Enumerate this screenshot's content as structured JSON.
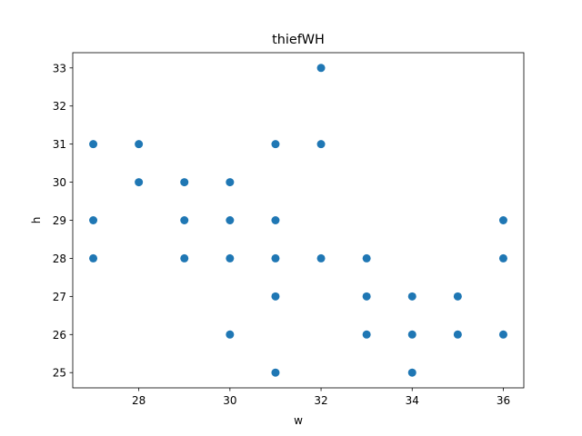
{
  "chart_data": {
    "type": "scatter",
    "title": "thiefWH",
    "xlabel": "w",
    "ylabel": "h",
    "xlim": [
      26.55,
      36.45
    ],
    "ylim": [
      24.6,
      33.4
    ],
    "xticks": [
      28,
      30,
      32,
      34,
      36
    ],
    "yticks": [
      25,
      26,
      27,
      28,
      29,
      30,
      31,
      32,
      33
    ],
    "grid": false,
    "marker_color": "#1f77b4",
    "points": [
      [
        27,
        31
      ],
      [
        27,
        29
      ],
      [
        27,
        28
      ],
      [
        28,
        31
      ],
      [
        28,
        30
      ],
      [
        29,
        30
      ],
      [
        29,
        29
      ],
      [
        29,
        28
      ],
      [
        30,
        30
      ],
      [
        30,
        29
      ],
      [
        30,
        28
      ],
      [
        30,
        26
      ],
      [
        31,
        31
      ],
      [
        31,
        29
      ],
      [
        31,
        28
      ],
      [
        31,
        27
      ],
      [
        31,
        25
      ],
      [
        32,
        33
      ],
      [
        32,
        31
      ],
      [
        32,
        28
      ],
      [
        33,
        28
      ],
      [
        33,
        27
      ],
      [
        33,
        26
      ],
      [
        34,
        27
      ],
      [
        34,
        26
      ],
      [
        34,
        25
      ],
      [
        35,
        27
      ],
      [
        35,
        26
      ],
      [
        36,
        29
      ],
      [
        36,
        28
      ],
      [
        36,
        26
      ]
    ]
  }
}
